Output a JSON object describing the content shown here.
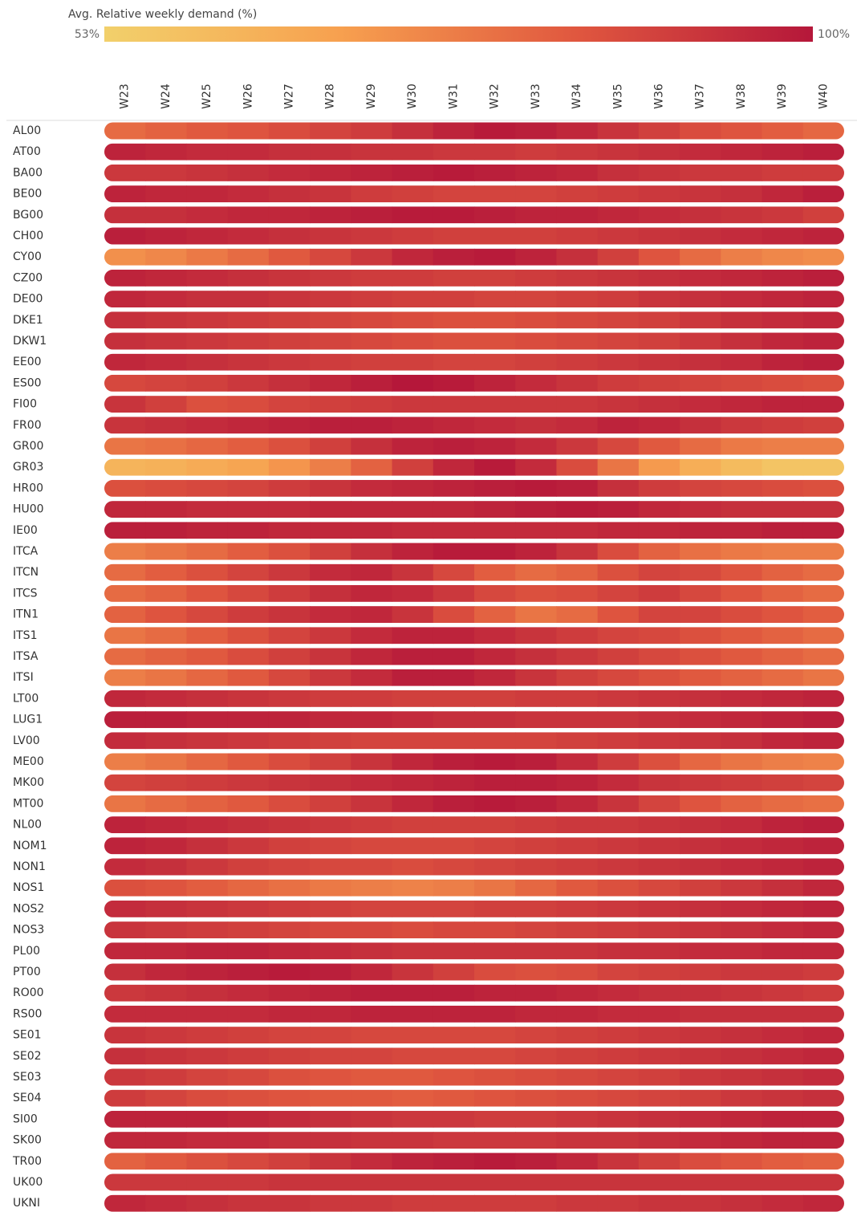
{
  "chart_data": {
    "type": "heatmap",
    "title": "Avg. Relative weekly demand (%)",
    "clim": [
      53,
      100
    ],
    "cticks": [
      {
        "value": 53,
        "label": "53%"
      },
      {
        "value": 100,
        "label": "100%"
      }
    ],
    "colors": [
      "#f2d06b",
      "#f7a04f",
      "#e0573f",
      "#b5173a"
    ],
    "x": [
      "W23",
      "W24",
      "W25",
      "W26",
      "W27",
      "W28",
      "W29",
      "W30",
      "W31",
      "W32",
      "W33",
      "W34",
      "W35",
      "W36",
      "W37",
      "W38",
      "W39",
      "W40"
    ],
    "y": [
      "AL00",
      "AT00",
      "BA00",
      "BE00",
      "BG00",
      "CH00",
      "CY00",
      "CZ00",
      "DE00",
      "DKE1",
      "DKW1",
      "EE00",
      "ES00",
      "FI00",
      "FR00",
      "GR00",
      "GR03",
      "HR00",
      "HU00",
      "IE00",
      "ITCA",
      "ITCN",
      "ITCS",
      "ITN1",
      "ITS1",
      "ITSA",
      "ITSI",
      "LT00",
      "LUG1",
      "LV00",
      "ME00",
      "MK00",
      "MT00",
      "NL00",
      "NOM1",
      "NON1",
      "NOS1",
      "NOS2",
      "NOS3",
      "PL00",
      "PT00",
      "RO00",
      "RS00",
      "SE01",
      "SE02",
      "SE03",
      "SE04",
      "SI00",
      "SK00",
      "TR00",
      "UK00",
      "UKNI"
    ],
    "values": [
      [
        80,
        82,
        84,
        85,
        87,
        89,
        91,
        94,
        97,
        99,
        98,
        96,
        93,
        90,
        87,
        85,
        83,
        81
      ],
      [
        97,
        96,
        95,
        95,
        94,
        94,
        93,
        93,
        92,
        92,
        91,
        92,
        93,
        94,
        95,
        96,
        97,
        98
      ],
      [
        92,
        92,
        93,
        94,
        95,
        96,
        97,
        98,
        99,
        98,
        97,
        96,
        94,
        93,
        92,
        92,
        91,
        91
      ],
      [
        97,
        96,
        96,
        95,
        94,
        93,
        91,
        90,
        89,
        89,
        89,
        90,
        91,
        92,
        93,
        94,
        96,
        98
      ],
      [
        94,
        94,
        95,
        96,
        96,
        97,
        98,
        99,
        99,
        98,
        97,
        97,
        96,
        95,
        94,
        93,
        92,
        90
      ],
      [
        98,
        97,
        96,
        95,
        94,
        93,
        92,
        91,
        90,
        90,
        90,
        91,
        92,
        93,
        94,
        95,
        96,
        97
      ],
      [
        72,
        74,
        77,
        80,
        84,
        88,
        92,
        96,
        98,
        99,
        97,
        94,
        90,
        85,
        80,
        76,
        74,
        73
      ],
      [
        97,
        96,
        95,
        94,
        93,
        92,
        91,
        91,
        90,
        90,
        91,
        92,
        93,
        94,
        95,
        96,
        97,
        98
      ],
      [
        96,
        95,
        94,
        94,
        93,
        92,
        91,
        90,
        90,
        89,
        89,
        90,
        91,
        93,
        94,
        95,
        96,
        97
      ],
      [
        94,
        93,
        92,
        91,
        90,
        89,
        88,
        87,
        86,
        86,
        87,
        88,
        89,
        90,
        92,
        94,
        95,
        96
      ],
      [
        94,
        93,
        92,
        91,
        90,
        89,
        88,
        87,
        86,
        86,
        87,
        88,
        89,
        90,
        92,
        94,
        96,
        97
      ],
      [
        96,
        95,
        94,
        93,
        92,
        91,
        90,
        90,
        89,
        89,
        90,
        91,
        92,
        93,
        94,
        95,
        97,
        98
      ],
      [
        88,
        89,
        90,
        92,
        94,
        96,
        98,
        100,
        99,
        97,
        95,
        93,
        91,
        90,
        89,
        88,
        87,
        86
      ],
      [
        93,
        90,
        86,
        87,
        89,
        90,
        91,
        92,
        92,
        92,
        92,
        92,
        93,
        94,
        95,
        96,
        97,
        97
      ],
      [
        93,
        94,
        95,
        96,
        97,
        98,
        98,
        97,
        96,
        95,
        94,
        95,
        97,
        96,
        94,
        92,
        91,
        90
      ],
      [
        78,
        79,
        81,
        83,
        86,
        90,
        94,
        97,
        98,
        97,
        95,
        92,
        88,
        84,
        80,
        77,
        76,
        76
      ],
      [
        62,
        63,
        65,
        67,
        71,
        76,
        82,
        90,
        96,
        99,
        95,
        87,
        78,
        70,
        64,
        60,
        57,
        57
      ],
      [
        86,
        87,
        88,
        89,
        91,
        93,
        95,
        96,
        97,
        98,
        99,
        98,
        94,
        91,
        89,
        88,
        87,
        86
      ],
      [
        96,
        96,
        95,
        95,
        95,
        96,
        96,
        96,
        96,
        97,
        98,
        99,
        98,
        96,
        95,
        94,
        94,
        94
      ],
      [
        98,
        98,
        97,
        97,
        96,
        96,
        96,
        95,
        95,
        95,
        95,
        95,
        96,
        96,
        97,
        97,
        98,
        98
      ],
      [
        76,
        78,
        80,
        83,
        86,
        90,
        94,
        97,
        99,
        99,
        97,
        93,
        87,
        82,
        79,
        77,
        76,
        76
      ],
      [
        80,
        83,
        86,
        89,
        92,
        95,
        96,
        93,
        88,
        83,
        80,
        82,
        86,
        89,
        88,
        85,
        82,
        80
      ],
      [
        80,
        82,
        85,
        88,
        91,
        94,
        96,
        95,
        92,
        88,
        86,
        87,
        89,
        91,
        88,
        85,
        82,
        80
      ],
      [
        82,
        85,
        88,
        91,
        93,
        95,
        96,
        93,
        87,
        82,
        78,
        80,
        85,
        89,
        89,
        87,
        85,
        83
      ],
      [
        78,
        80,
        83,
        86,
        89,
        92,
        95,
        97,
        97,
        95,
        93,
        91,
        89,
        88,
        86,
        84,
        82,
        80
      ],
      [
        80,
        82,
        84,
        87,
        90,
        93,
        96,
        98,
        98,
        96,
        94,
        92,
        90,
        88,
        86,
        84,
        82,
        80
      ],
      [
        76,
        78,
        81,
        84,
        88,
        92,
        95,
        98,
        98,
        96,
        93,
        90,
        88,
        86,
        84,
        82,
        80,
        78
      ],
      [
        96,
        95,
        94,
        93,
        92,
        91,
        91,
        90,
        90,
        90,
        91,
        91,
        92,
        93,
        94,
        95,
        96,
        97
      ],
      [
        98,
        98,
        97,
        97,
        97,
        96,
        96,
        95,
        94,
        94,
        93,
        93,
        93,
        94,
        95,
        96,
        97,
        98
      ],
      [
        95,
        94,
        93,
        92,
        91,
        90,
        89,
        89,
        89,
        89,
        89,
        90,
        91,
        92,
        93,
        94,
        96,
        97
      ],
      [
        76,
        78,
        81,
        84,
        87,
        90,
        93,
        96,
        98,
        99,
        98,
        95,
        91,
        86,
        81,
        78,
        76,
        75
      ],
      [
        89,
        90,
        91,
        92,
        93,
        94,
        95,
        96,
        97,
        98,
        98,
        97,
        95,
        93,
        92,
        91,
        90,
        89
      ],
      [
        78,
        80,
        82,
        84,
        87,
        90,
        93,
        96,
        98,
        99,
        98,
        96,
        93,
        89,
        85,
        82,
        80,
        79
      ],
      [
        97,
        96,
        95,
        94,
        93,
        92,
        91,
        90,
        90,
        90,
        91,
        92,
        92,
        93,
        94,
        95,
        97,
        98
      ],
      [
        97,
        96,
        94,
        92,
        90,
        89,
        88,
        88,
        88,
        89,
        90,
        91,
        92,
        93,
        94,
        95,
        96,
        97
      ],
      [
        95,
        94,
        92,
        90,
        89,
        88,
        88,
        87,
        88,
        89,
        90,
        91,
        92,
        93,
        94,
        95,
        96,
        97
      ],
      [
        86,
        85,
        83,
        81,
        79,
        77,
        76,
        75,
        76,
        78,
        81,
        84,
        86,
        88,
        90,
        92,
        94,
        96
      ],
      [
        95,
        94,
        93,
        92,
        91,
        90,
        89,
        89,
        89,
        90,
        90,
        91,
        92,
        93,
        94,
        95,
        96,
        97
      ],
      [
        93,
        92,
        91,
        90,
        89,
        88,
        88,
        87,
        88,
        88,
        89,
        90,
        91,
        92,
        93,
        94,
        95,
        96
      ],
      [
        96,
        96,
        97,
        97,
        96,
        95,
        94,
        93,
        93,
        93,
        93,
        93,
        94,
        94,
        95,
        95,
        96,
        96
      ],
      [
        94,
        96,
        97,
        98,
        99,
        98,
        96,
        93,
        90,
        87,
        86,
        87,
        89,
        90,
        91,
        92,
        92,
        91
      ],
      [
        92,
        93,
        94,
        95,
        96,
        97,
        98,
        98,
        98,
        97,
        97,
        96,
        95,
        94,
        94,
        93,
        92,
        91
      ],
      [
        95,
        95,
        95,
        95,
        96,
        96,
        97,
        97,
        97,
        97,
        96,
        96,
        95,
        95,
        94,
        94,
        94,
        94
      ],
      [
        93,
        92,
        91,
        90,
        89,
        89,
        88,
        88,
        88,
        88,
        89,
        90,
        91,
        92,
        93,
        94,
        95,
        96
      ],
      [
        94,
        93,
        92,
        91,
        90,
        89,
        89,
        88,
        88,
        88,
        89,
        90,
        91,
        92,
        93,
        94,
        95,
        96
      ],
      [
        92,
        91,
        89,
        88,
        86,
        85,
        84,
        84,
        85,
        86,
        87,
        88,
        89,
        90,
        92,
        93,
        94,
        95
      ],
      [
        91,
        89,
        87,
        86,
        85,
        84,
        84,
        83,
        84,
        85,
        86,
        87,
        88,
        89,
        90,
        92,
        93,
        94
      ],
      [
        97,
        97,
        97,
        96,
        95,
        94,
        93,
        92,
        92,
        91,
        91,
        92,
        93,
        94,
        95,
        96,
        97,
        97
      ],
      [
        96,
        96,
        95,
        95,
        94,
        94,
        93,
        93,
        92,
        92,
        92,
        93,
        93,
        94,
        95,
        96,
        97,
        97
      ],
      [
        82,
        84,
        86,
        88,
        90,
        93,
        95,
        97,
        98,
        99,
        98,
        96,
        93,
        90,
        87,
        85,
        83,
        82
      ],
      [
        92,
        92,
        92,
        92,
        93,
        93,
        93,
        93,
        93,
        93,
        93,
        93,
        93,
        93,
        93,
        93,
        93,
        93
      ],
      [
        96,
        95,
        94,
        93,
        93,
        92,
        92,
        91,
        91,
        91,
        91,
        92,
        92,
        93,
        93,
        94,
        95,
        96
      ]
    ]
  }
}
